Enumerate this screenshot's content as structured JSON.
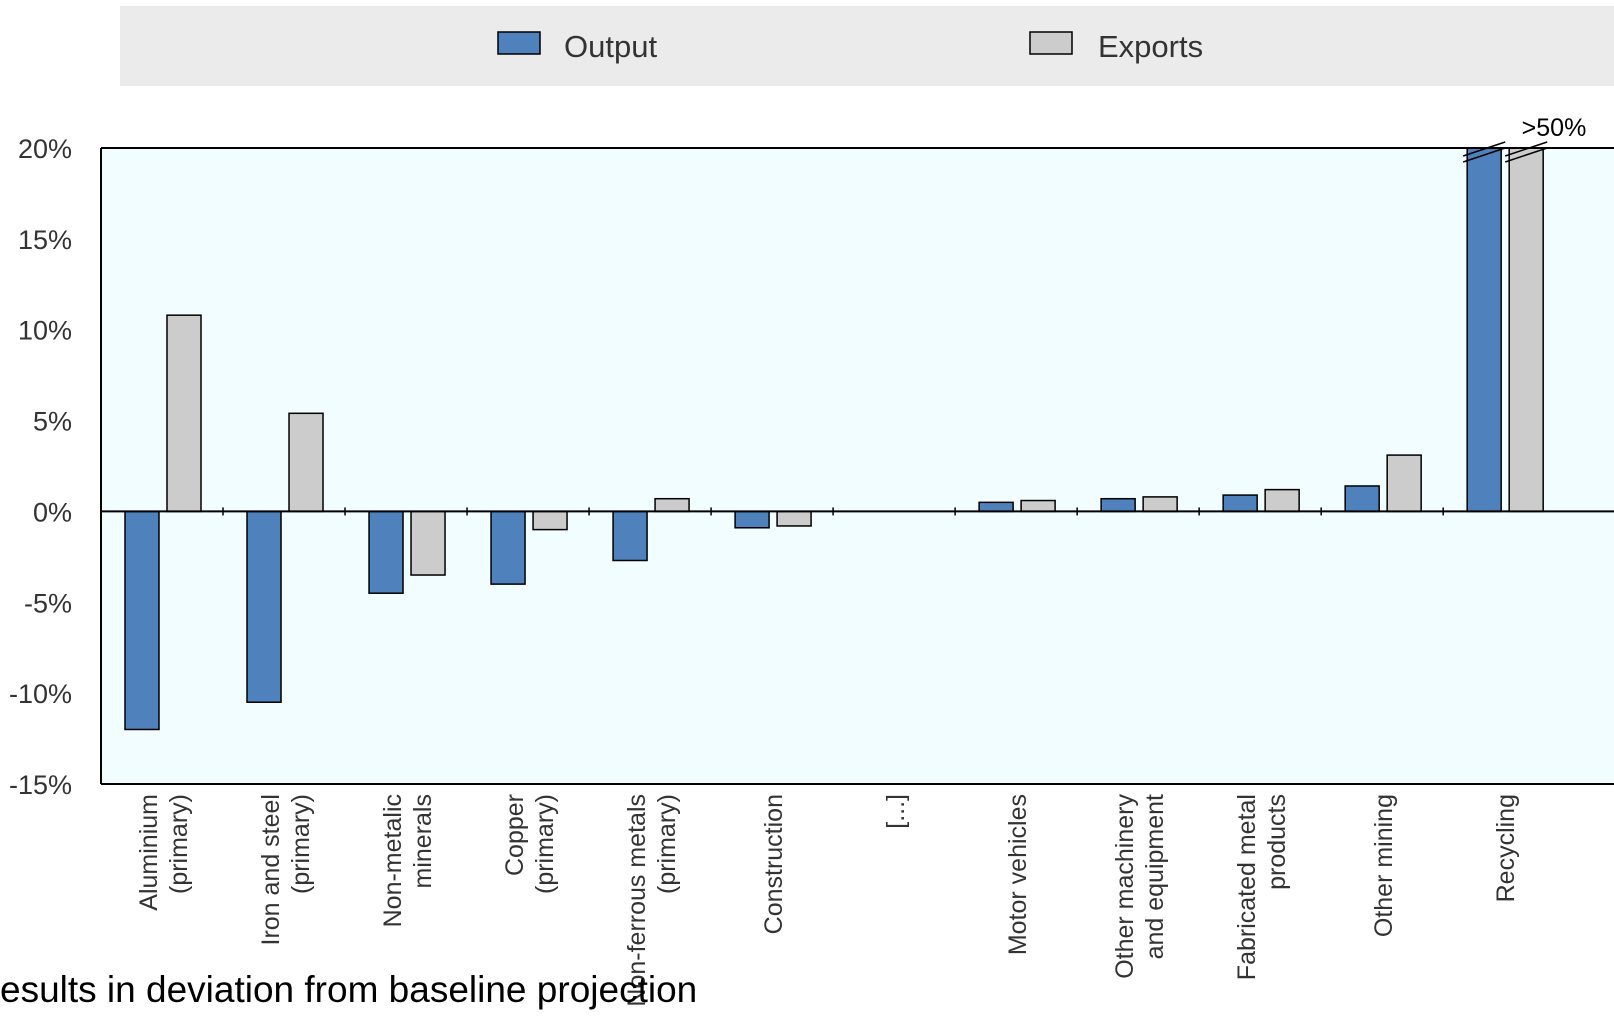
{
  "chart_data": {
    "type": "bar",
    "title": "",
    "xlabel": "",
    "ylabel": "",
    "categories": [
      [
        "Aluminium",
        "(primary)"
      ],
      [
        "Iron and steel",
        "(primary)"
      ],
      [
        "Non-metalic",
        "minerals"
      ],
      [
        "Copper",
        "(primary)"
      ],
      [
        "Non-ferrous metals",
        "(primary)"
      ],
      [
        "Construction"
      ],
      [
        "[...]"
      ],
      [
        "Motor vehicles"
      ],
      [
        "Other machinery",
        "and equipment"
      ],
      [
        "Fabricated metal",
        "products"
      ],
      [
        "Other mining"
      ],
      [
        "Recycling"
      ]
    ],
    "series": [
      {
        "name": "Output",
        "color": "#4f81bd",
        "values": [
          -12.0,
          -10.5,
          -4.5,
          -4.0,
          -2.7,
          -0.9,
          null,
          0.5,
          0.7,
          0.9,
          1.4,
          20
        ]
      },
      {
        "name": "Exports",
        "color": "#cccccc",
        "values": [
          10.8,
          5.4,
          -3.5,
          -1.0,
          0.7,
          -0.8,
          null,
          0.6,
          0.8,
          1.2,
          3.1,
          20
        ]
      }
    ],
    "ylim": [
      -15,
      20
    ],
    "yticks": [
      "20%",
      "15%",
      "10%",
      "5%",
      "0%",
      "-5%",
      "-10%",
      "-15%"
    ],
    "legend_position": "top",
    "break_label": ">50%",
    "grid": false
  },
  "footnote": "esults in deviation from baseline projection"
}
